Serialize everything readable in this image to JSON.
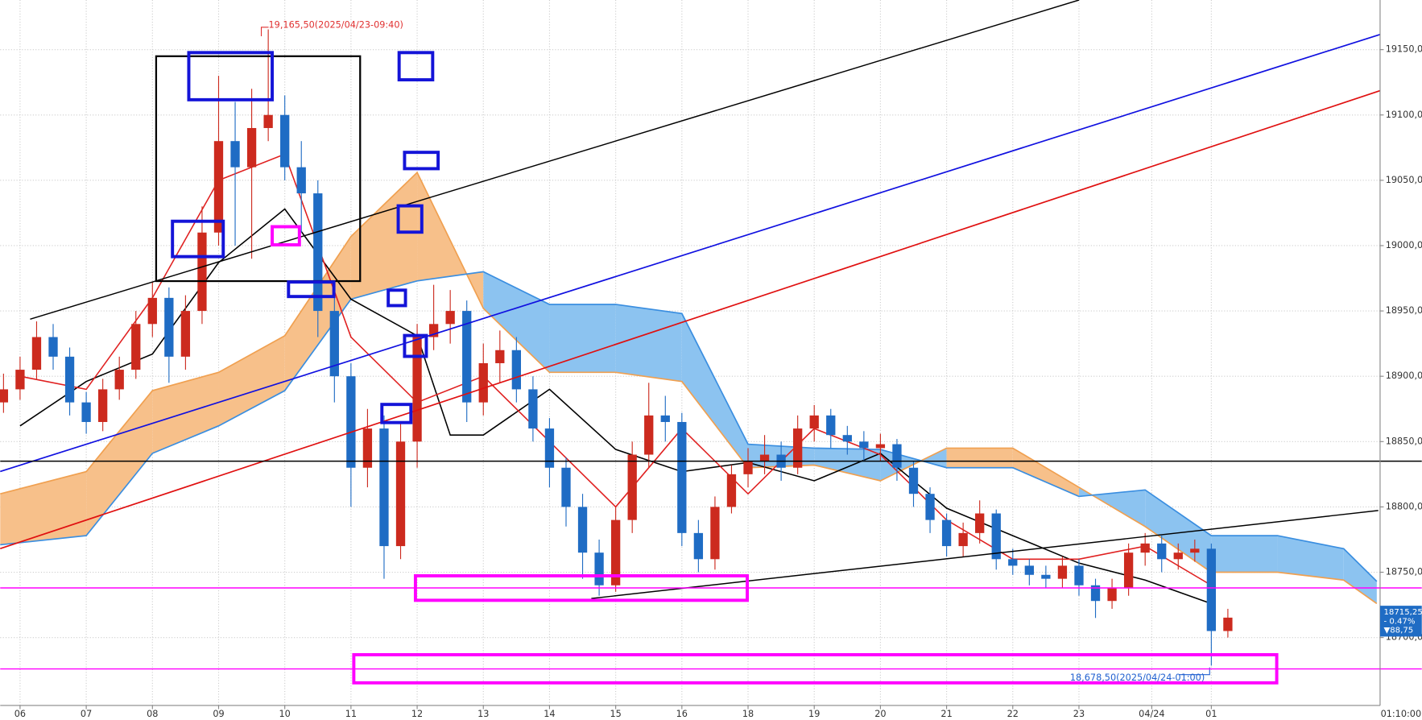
{
  "chart_data": {
    "type": "candlestick",
    "up_color": "#cc2a1e",
    "down_color": "#1f6cc4",
    "xlim": [
      -0.3,
      20.55
    ],
    "ylim": [
      18648,
      19188
    ],
    "xticks": [
      {
        "value": 0,
        "label": "06"
      },
      {
        "value": 1,
        "label": "07"
      },
      {
        "value": 2,
        "label": "08"
      },
      {
        "value": 3,
        "label": "09"
      },
      {
        "value": 4,
        "label": "10"
      },
      {
        "value": 5,
        "label": "11"
      },
      {
        "value": 6,
        "label": "12"
      },
      {
        "value": 7,
        "label": "13"
      },
      {
        "value": 8,
        "label": "14"
      },
      {
        "value": 9,
        "label": "15"
      },
      {
        "value": 10,
        "label": "16"
      },
      {
        "value": 11,
        "label": "18"
      },
      {
        "value": 12,
        "label": "19"
      },
      {
        "value": 13,
        "label": "20"
      },
      {
        "value": 14,
        "label": "21"
      },
      {
        "value": 15,
        "label": "22"
      },
      {
        "value": 16,
        "label": "23"
      },
      {
        "value": 17.1,
        "label": "04/24"
      },
      {
        "value": 18,
        "label": "01"
      }
    ],
    "x_axis_end_label": "01:10:00",
    "yticks": [
      {
        "value": 18700,
        "label": "18700,00"
      },
      {
        "value": 18750,
        "label": "18750,00"
      },
      {
        "value": 18800,
        "label": "18800,00"
      },
      {
        "value": 18850,
        "label": "18850,00"
      },
      {
        "value": 18900,
        "label": "18900,00"
      },
      {
        "value": 18950,
        "label": "18950,00"
      },
      {
        "value": 19000,
        "label": "19000,00"
      },
      {
        "value": 19050,
        "label": "19050,00"
      },
      {
        "value": 19100,
        "label": "19100,00"
      },
      {
        "value": 19150,
        "label": "19150,00"
      }
    ],
    "grid": true,
    "x": [
      -0.25,
      0,
      0.25,
      0.5,
      0.75,
      1,
      1.25,
      1.5,
      1.75,
      2,
      2.25,
      2.5,
      2.75,
      3,
      3.25,
      3.5,
      3.75,
      4,
      4.25,
      4.5,
      4.75,
      5,
      5.25,
      5.5,
      5.75,
      6,
      6.25,
      6.5,
      6.75,
      7,
      7.25,
      7.5,
      7.75,
      8,
      8.25,
      8.5,
      8.75,
      9,
      9.25,
      9.5,
      9.75,
      10,
      10.25,
      10.5,
      10.75,
      11,
      11.25,
      11.5,
      11.75,
      12,
      12.25,
      12.5,
      12.75,
      13,
      13.25,
      13.5,
      13.75,
      14,
      14.25,
      14.5,
      14.75,
      15,
      15.25,
      15.5,
      15.75,
      16,
      16.25,
      16.5,
      16.75,
      17,
      17.25,
      17.5,
      17.75,
      18,
      18.25
    ],
    "open": [
      18880,
      18890,
      18905,
      18930,
      18915,
      18880,
      18865,
      18890,
      18905,
      18940,
      18960,
      18915,
      18950,
      19010,
      19080,
      19060,
      19090,
      19100,
      19060,
      19040,
      18950,
      18900,
      18830,
      18860,
      18770,
      18850,
      18930,
      18940,
      18950,
      18880,
      18910,
      18920,
      18890,
      18860,
      18830,
      18800,
      18765,
      18740,
      18790,
      18840,
      18870,
      18865,
      18780,
      18760,
      18800,
      18825,
      18835,
      18840,
      18830,
      18860,
      18870,
      18855,
      18850,
      18845,
      18848,
      18830,
      18810,
      18790,
      18770,
      18780,
      18795,
      18760,
      18755,
      18748,
      18745,
      18755,
      18740,
      18728,
      18738,
      18765,
      18772,
      18760,
      18765,
      18768,
      18705
    ],
    "high": [
      18902,
      18915,
      18942,
      18940,
      18922,
      18888,
      18898,
      18915,
      18950,
      18972,
      18968,
      18962,
      19030,
      19130,
      19110,
      19120,
      19165.5,
      19115,
      19080,
      19050,
      18960,
      18910,
      18875,
      18870,
      18865,
      18940,
      18970,
      18966,
      18958,
      18925,
      18935,
      18930,
      18900,
      18868,
      18838,
      18810,
      18775,
      18800,
      18850,
      18895,
      18885,
      18872,
      18790,
      18808,
      18832,
      18845,
      18855,
      18850,
      18870,
      18878,
      18875,
      18862,
      18858,
      18856,
      18852,
      18835,
      18815,
      18795,
      18788,
      18805,
      18798,
      18768,
      18760,
      18755,
      18762,
      18760,
      18745,
      18745,
      18772,
      18780,
      18778,
      18772,
      18775,
      18772,
      18722
    ],
    "low": [
      18872,
      18882,
      18898,
      18905,
      18870,
      18856,
      18858,
      18882,
      18898,
      18930,
      18895,
      18905,
      18940,
      19000,
      19000,
      18990,
      19080,
      19050,
      19010,
      18930,
      18880,
      18800,
      18815,
      18745,
      18760,
      18830,
      18920,
      18925,
      18865,
      18870,
      18895,
      18880,
      18850,
      18815,
      18785,
      18745,
      18732,
      18735,
      18780,
      18830,
      18850,
      18770,
      18750,
      18752,
      18795,
      18815,
      18825,
      18820,
      18825,
      18850,
      18845,
      18840,
      18835,
      18835,
      18820,
      18800,
      18780,
      18762,
      18762,
      18772,
      18752,
      18748,
      18740,
      18738,
      18738,
      18732,
      18715,
      18722,
      18732,
      18755,
      18750,
      18752,
      18758,
      18678.5,
      18700
    ],
    "close": [
      18890,
      18905,
      18930,
      18915,
      18880,
      18865,
      18890,
      18905,
      18940,
      18960,
      18915,
      18950,
      19010,
      19080,
      19060,
      19090,
      19100,
      19060,
      19040,
      18950,
      18900,
      18830,
      18860,
      18770,
      18850,
      18930,
      18940,
      18950,
      18880,
      18910,
      18920,
      18890,
      18860,
      18830,
      18800,
      18765,
      18740,
      18790,
      18840,
      18870,
      18865,
      18780,
      18760,
      18800,
      18825,
      18835,
      18840,
      18830,
      18860,
      18870,
      18855,
      18850,
      18845,
      18848,
      18830,
      18810,
      18790,
      18770,
      18780,
      18795,
      18760,
      18755,
      18748,
      18745,
      18755,
      18740,
      18728,
      18738,
      18765,
      18772,
      18760,
      18765,
      18768,
      18705,
      18715.25
    ],
    "cloud": {
      "x": [
        -0.3,
        1,
        2,
        3,
        4,
        5,
        6,
        7,
        8,
        9,
        10,
        11,
        12,
        13,
        14,
        15,
        16,
        17,
        18,
        19,
        20,
        20.5
      ],
      "span_a": [
        18810,
        18827,
        18889,
        18903,
        18931,
        19007,
        19056,
        18952,
        18903,
        18903,
        18896,
        18830,
        18832,
        18820,
        18845,
        18845,
        18815,
        18785,
        18750,
        18750,
        18744,
        18726
      ],
      "span_b": [
        18771,
        18778,
        18841,
        18862,
        18889,
        18959,
        18973,
        18980,
        18955,
        18955,
        18948,
        18848,
        18845,
        18844,
        18830,
        18830,
        18808,
        18813,
        18778,
        18778,
        18768,
        18743
      ],
      "color_a": "#f7c08a",
      "color_b": "#8cc3f0",
      "edge_a": "#f0a050",
      "edge_b": "#3a8ee0"
    },
    "lines": [
      {
        "color": "#000000",
        "x": [
          0,
          1,
          2,
          3,
          4,
          5,
          6,
          6.5,
          7,
          8,
          9,
          10,
          11,
          12,
          13,
          14,
          15,
          16,
          17,
          18
        ],
        "values": [
          18862,
          18896,
          18917,
          18987,
          19028,
          18959,
          18931,
          18855,
          18855,
          18890,
          18844,
          18827,
          18834,
          18820,
          18841,
          18799,
          18778,
          18757,
          18744,
          18726
        ]
      },
      {
        "color": "#e02020",
        "x": [
          0,
          1,
          2,
          3,
          4,
          5,
          6,
          7,
          8,
          9,
          10,
          11,
          12,
          13,
          14,
          15,
          16,
          17,
          18
        ],
        "values": [
          18900,
          18890,
          18960,
          19050,
          19070,
          18930,
          18880,
          18900,
          18850,
          18800,
          18860,
          18810,
          18860,
          18840,
          18790,
          18760,
          18760,
          18770,
          18740
        ]
      }
    ],
    "hlines": [
      {
        "value": 18835,
        "color": "#000000"
      },
      {
        "value": 18738,
        "color": "#ff00ff"
      },
      {
        "value": 18676,
        "color": "#ff00ff"
      }
    ],
    "annotations": [
      "19,165,50(2025/04/23-09:40)",
      "18,678,50(2025/04/24-01:00)"
    ],
    "last_price": {
      "price": "18715,25",
      "change": "- 0.47%",
      "diff": "▼88,75"
    }
  }
}
